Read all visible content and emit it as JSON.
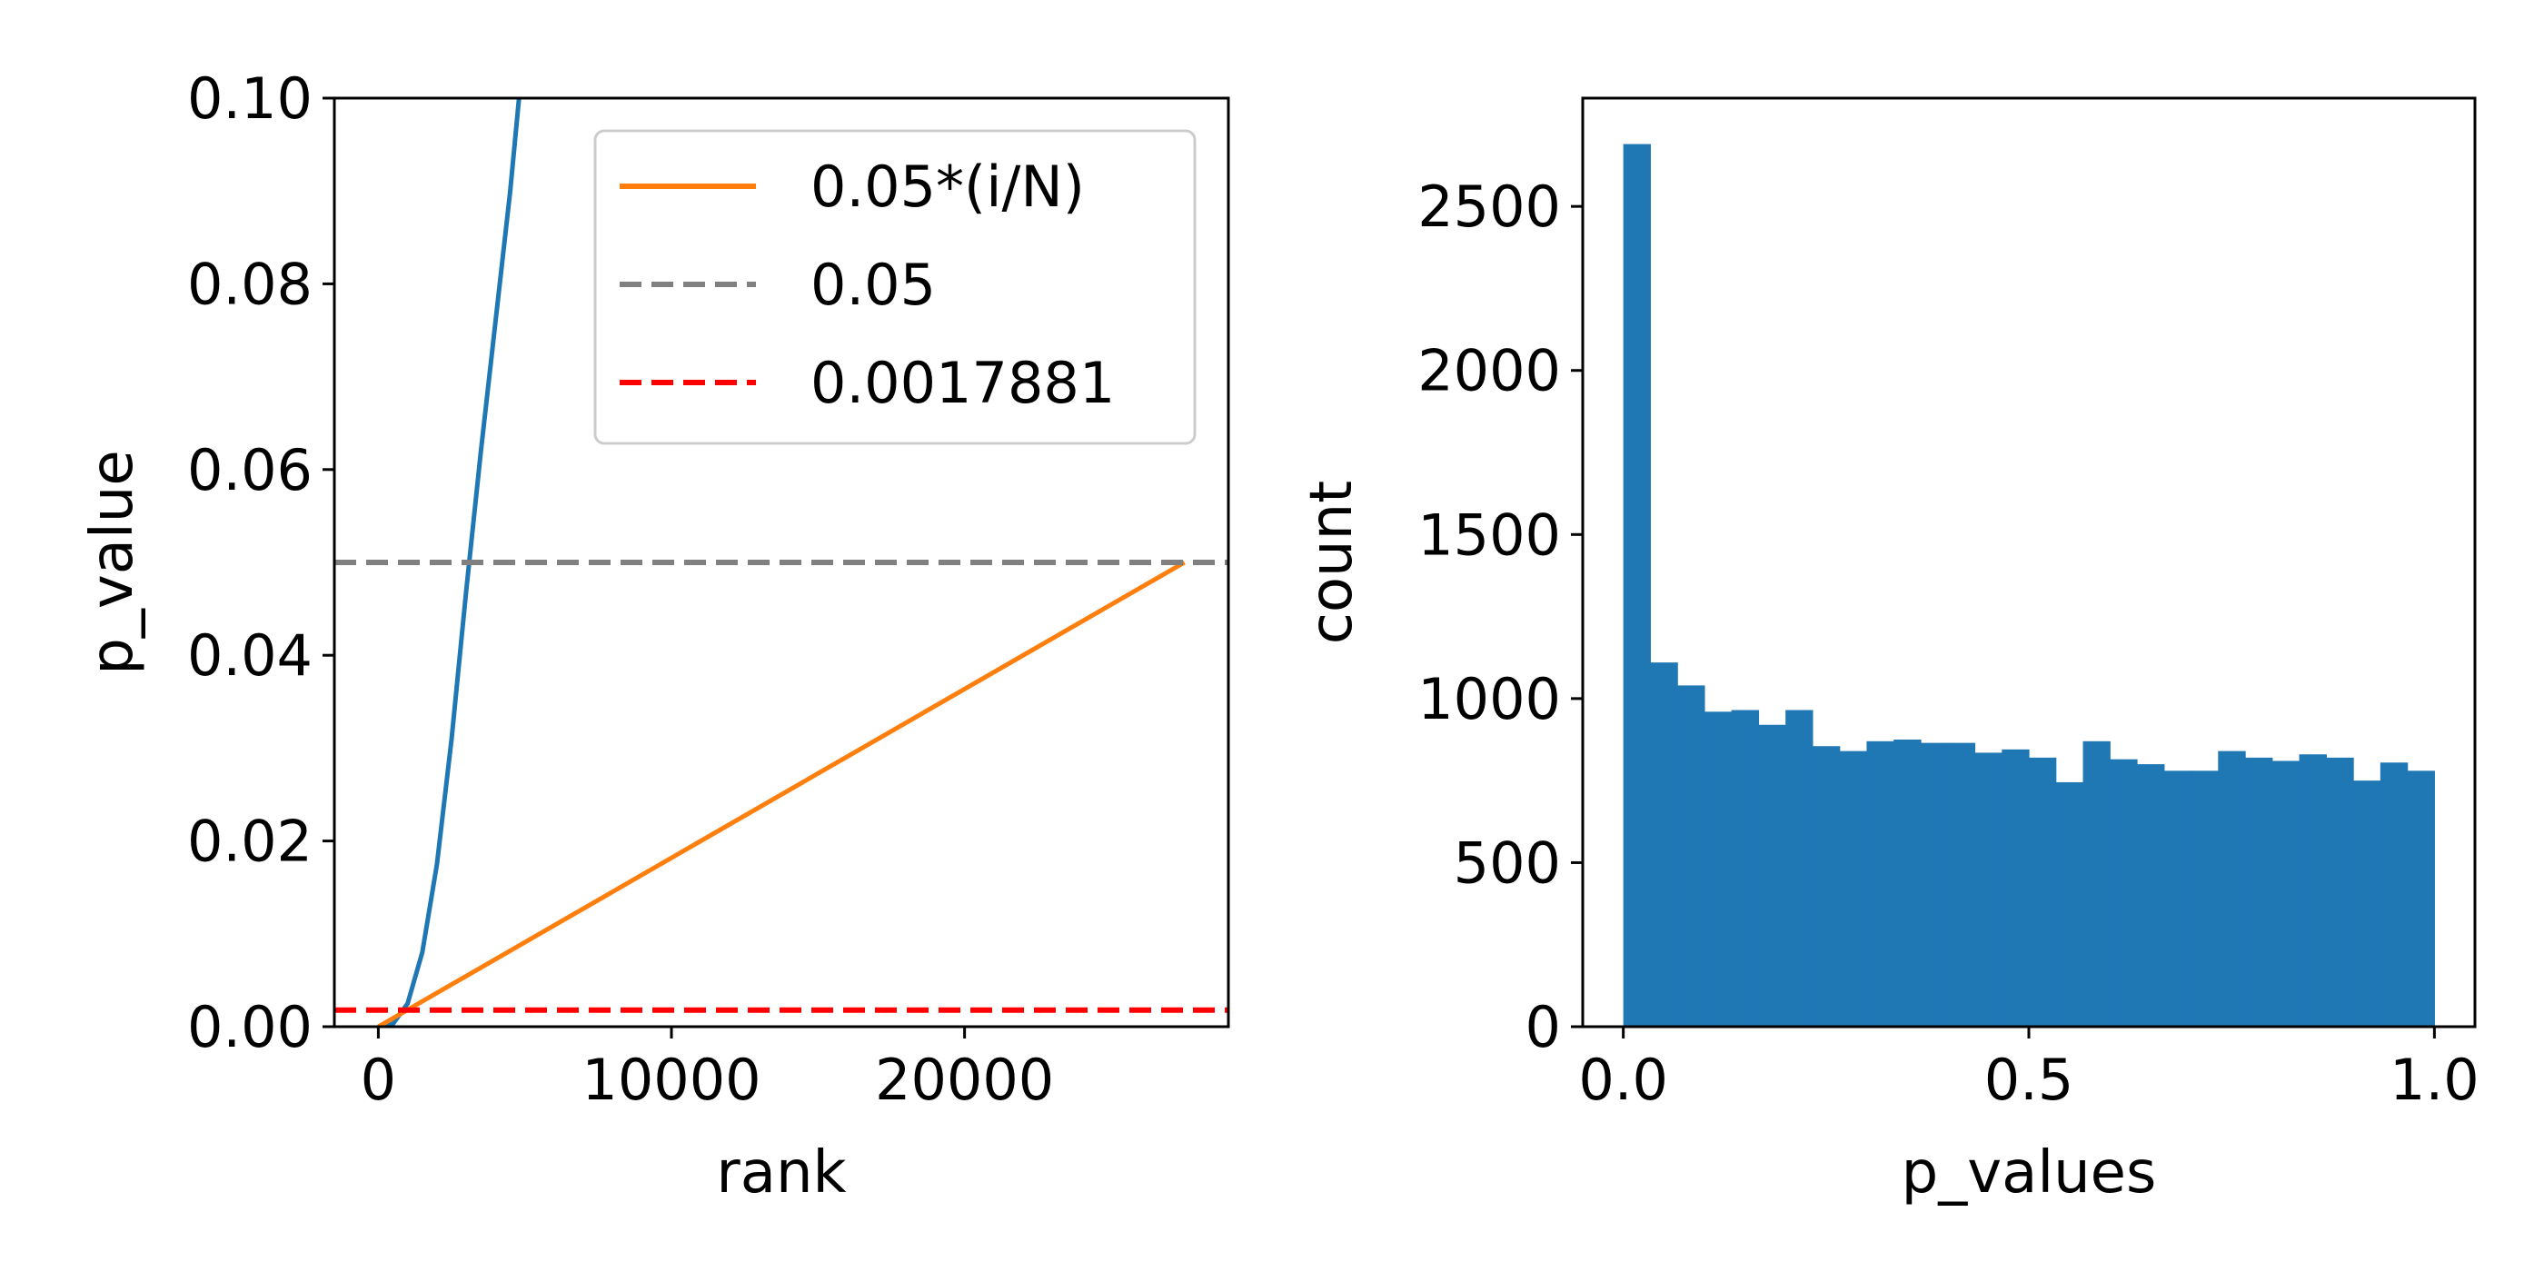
{
  "chart_data": [
    {
      "type": "line",
      "xlabel": "rank",
      "ylabel": "p_value",
      "xlim": [
        -1500,
        29000
      ],
      "ylim": [
        0,
        0.1
      ],
      "xticks": [
        0,
        10000,
        20000
      ],
      "xtick_labels": [
        "0",
        "10000",
        "20000"
      ],
      "yticks": [
        0,
        0.02,
        0.04,
        0.06,
        0.08,
        0.1
      ],
      "ytick_labels": [
        "0.00",
        "0.02",
        "0.04",
        "0.06",
        "0.08",
        "0.10"
      ],
      "legend_position": "top-right",
      "series": [
        {
          "name": "",
          "style": "solid",
          "color": "#1f77b4",
          "x": [
            0,
            500,
            1000,
            1500,
            2000,
            2500,
            3000,
            3500,
            4000,
            4500,
            4800
          ],
          "y": [
            0.0,
            0.0003,
            0.0025,
            0.008,
            0.0175,
            0.031,
            0.047,
            0.062,
            0.076,
            0.09,
            0.1
          ]
        },
        {
          "name": "0.05*(i/N)",
          "style": "solid",
          "color": "#ff7f0e",
          "x": [
            0,
            27500
          ],
          "y": [
            0.0,
            0.05
          ]
        },
        {
          "name": "0.05",
          "style": "dashed",
          "color": "#808080",
          "y_const": 0.05
        },
        {
          "name": "0.0017881",
          "style": "dashed",
          "color": "#ff0000",
          "y_const": 0.0017881
        }
      ]
    },
    {
      "type": "bar",
      "xlabel": "p_values",
      "ylabel": "count",
      "xlim": [
        -0.05,
        1.05
      ],
      "ylim": [
        0,
        2830
      ],
      "xticks": [
        0,
        0.5,
        1
      ],
      "xtick_labels": [
        "0.0",
        "0.5",
        "1.0"
      ],
      "yticks": [
        0,
        500,
        1000,
        1500,
        2000,
        2500
      ],
      "ytick_labels": [
        "0",
        "500",
        "1000",
        "1500",
        "2000",
        "2500"
      ],
      "color": "#1f77b4",
      "bin_edges": [
        0.0,
        0.0333,
        0.0667,
        0.1,
        0.1333,
        0.1667,
        0.2,
        0.2333,
        0.2667,
        0.3,
        0.3333,
        0.3667,
        0.4,
        0.4333,
        0.4667,
        0.5,
        0.5333,
        0.5667,
        0.6,
        0.6333,
        0.6667,
        0.7,
        0.7333,
        0.7667,
        0.8,
        0.8333,
        0.8667,
        0.9,
        0.9333,
        0.9667,
        1.0
      ],
      "values": [
        2690,
        1110,
        1040,
        960,
        965,
        920,
        965,
        855,
        840,
        870,
        875,
        865,
        865,
        835,
        845,
        820,
        745,
        870,
        815,
        800,
        780,
        780,
        840,
        820,
        810,
        830,
        820,
        750,
        805,
        780
      ]
    }
  ]
}
